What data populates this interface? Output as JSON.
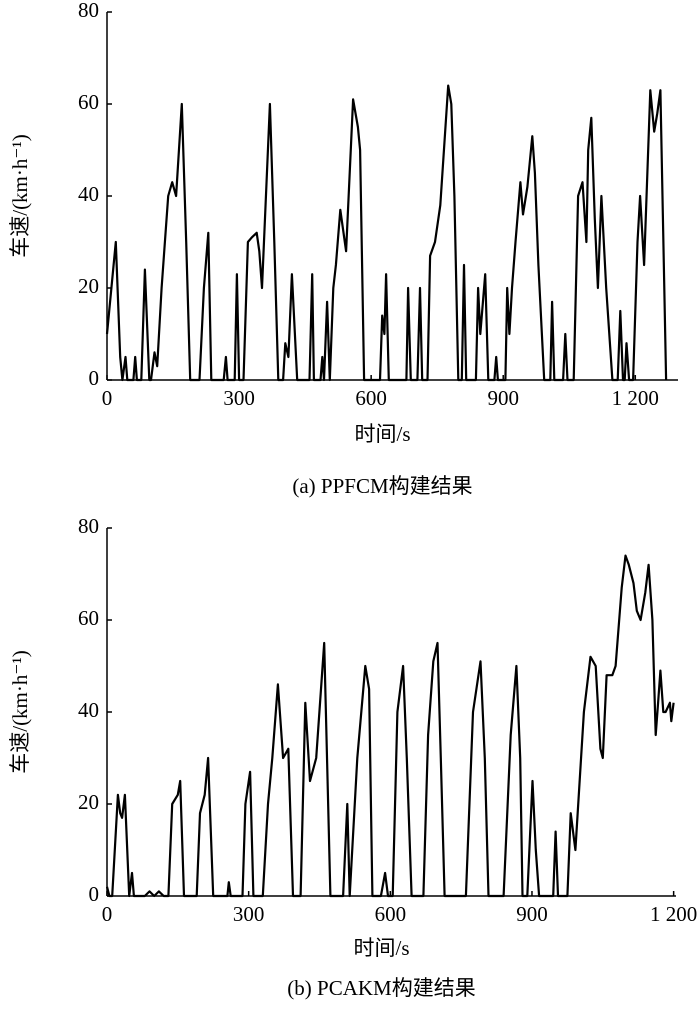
{
  "chart_data": [
    {
      "type": "line",
      "xlabel": "时间/s",
      "ylabel": "车速/(km·h⁻¹)",
      "caption": "(a) PPFCM构建结果",
      "xlim": [
        0,
        1297
      ],
      "ylim": [
        0,
        80
      ],
      "xticks": [
        0,
        300,
        600,
        900,
        {
          "value": 1200,
          "label": "1 200"
        }
      ],
      "yticks": [
        0,
        20,
        40,
        60,
        80
      ],
      "series": [
        {
          "color": "#000000",
          "x": [
            0,
            20,
            30,
            35,
            42,
            46,
            60,
            64,
            68,
            78,
            86,
            96,
            100,
            108,
            114,
            124,
            139,
            148,
            157,
            170,
            180,
            189,
            210,
            220,
            230,
            237,
            265,
            270,
            274,
            290,
            295,
            300,
            310,
            320,
            329,
            340,
            346,
            352,
            370,
            380,
            389,
            400,
            405,
            412,
            420,
            432,
            460,
            466,
            470,
            485,
            489,
            493,
            500,
            506,
            514,
            520,
            530,
            543,
            559,
            570,
            575,
            584,
            620,
            625,
            630,
            634,
            640,
            680,
            684,
            690,
            705,
            711,
            716,
            728,
            734,
            745,
            757,
            775,
            782,
            789,
            798,
            806,
            811,
            816,
            838,
            843,
            848,
            859,
            866,
            880,
            884,
            888,
            905,
            909,
            914,
            920,
            928,
            939,
            945,
            955,
            966,
            972,
            980,
            993,
            1007,
            1011,
            1016,
            1036,
            1041,
            1046,
            1060,
            1070,
            1080,
            1089,
            1093,
            1100,
            1108,
            1115,
            1123,
            1134,
            1148,
            1160,
            1166,
            1172,
            1176,
            1180,
            1186,
            1195,
            1205,
            1211,
            1220,
            1234,
            1243,
            1250,
            1257,
            1270
          ],
          "values": [
            10,
            30,
            5,
            0,
            5,
            0,
            0,
            5,
            0,
            0,
            24,
            0,
            0,
            6,
            3,
            20,
            40,
            43,
            40,
            60,
            30,
            0,
            0,
            20,
            32,
            0,
            0,
            5,
            0,
            0,
            23,
            0,
            0,
            30,
            31,
            32,
            28,
            20,
            60,
            30,
            0,
            0,
            8,
            5,
            23,
            0,
            0,
            23,
            0,
            0,
            5,
            0,
            17,
            0,
            20,
            25,
            37,
            28,
            61,
            55,
            50,
            0,
            0,
            14,
            10,
            23,
            0,
            0,
            20,
            0,
            0,
            20,
            0,
            0,
            27,
            30,
            38,
            64,
            60,
            40,
            0,
            0,
            25,
            0,
            0,
            20,
            10,
            23,
            0,
            0,
            5,
            0,
            0,
            20,
            10,
            20,
            30,
            43,
            36,
            42,
            53,
            45,
            25,
            0,
            0,
            17,
            0,
            0,
            10,
            0,
            0,
            40,
            43,
            30,
            50,
            57,
            35,
            20,
            40,
            20,
            0,
            0,
            15,
            0,
            0,
            8,
            0,
            0,
            30,
            40,
            25,
            63,
            54,
            58,
            63,
            0
          ]
        }
      ]
    },
    {
      "type": "line",
      "xlabel": "时间/s",
      "ylabel": "车速/(km·h⁻¹)",
      "caption": "(b) PCAKM构建结果",
      "xlim": [
        0,
        1205
      ],
      "ylim": [
        0,
        80
      ],
      "xticks": [
        0,
        300,
        600,
        900,
        {
          "value": 1200,
          "label": "1 200"
        }
      ],
      "yticks": [
        0,
        20,
        40,
        60,
        80
      ],
      "series": [
        {
          "color": "#000000",
          "x": [
            0,
            5,
            11,
            23,
            28,
            32,
            38,
            47,
            53,
            57,
            80,
            90,
            100,
            110,
            120,
            130,
            138,
            150,
            155,
            163,
            190,
            197,
            207,
            214,
            225,
            255,
            258,
            262,
            287,
            293,
            303,
            310,
            330,
            341,
            350,
            362,
            373,
            384,
            394,
            410,
            420,
            430,
            443,
            460,
            473,
            500,
            509,
            514,
            530,
            547,
            555,
            562,
            580,
            589,
            595,
            605,
            615,
            627,
            635,
            645,
            670,
            680,
            691,
            700,
            707,
            715,
            760,
            775,
            791,
            800,
            808,
            840,
            855,
            867,
            875,
            880,
            890,
            901,
            908,
            915,
            945,
            950,
            955,
            975,
            982,
            992,
            1010,
            1024,
            1035,
            1045,
            1050,
            1058,
            1070,
            1077,
            1090,
            1098,
            1105,
            1115,
            1122,
            1130,
            1140,
            1147,
            1155,
            1162,
            1167,
            1172,
            1178,
            1183,
            1192,
            1195,
            1200
          ],
          "values": [
            2,
            0,
            0,
            22,
            18,
            17,
            22,
            0,
            5,
            0,
            0,
            1,
            0,
            1,
            0,
            0,
            20,
            22,
            25,
            0,
            0,
            18,
            22,
            30,
            0,
            0,
            3,
            0,
            0,
            20,
            27,
            0,
            0,
            20,
            30,
            46,
            30,
            32,
            0,
            0,
            42,
            25,
            30,
            55,
            0,
            0,
            20,
            0,
            30,
            50,
            45,
            0,
            0,
            5,
            0,
            0,
            40,
            50,
            30,
            0,
            0,
            35,
            51,
            55,
            30,
            0,
            0,
            40,
            51,
            30,
            0,
            0,
            35,
            50,
            30,
            0,
            0,
            25,
            10,
            0,
            0,
            14,
            0,
            0,
            18,
            10,
            40,
            52,
            50,
            32,
            30,
            48,
            48,
            50,
            67,
            74,
            72,
            68,
            62,
            60,
            66,
            72,
            60,
            35,
            42,
            49,
            40,
            40,
            42,
            38,
            42
          ]
        }
      ]
    }
  ]
}
